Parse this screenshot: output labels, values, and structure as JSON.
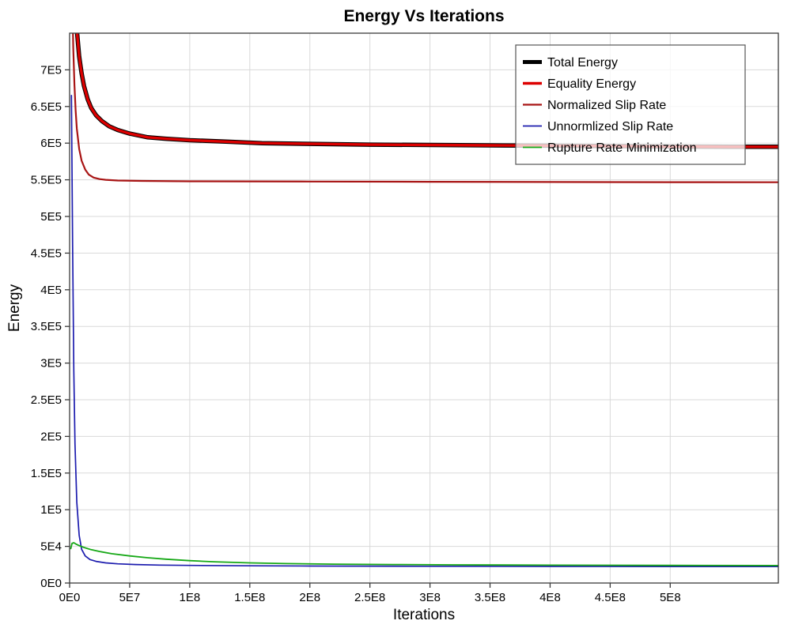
{
  "chart_data": {
    "type": "line",
    "title": "Energy Vs Iterations",
    "xlabel": "Iterations",
    "ylabel": "Energy",
    "xlim": [
      0,
      590000000
    ],
    "ylim": [
      0,
      750000
    ],
    "grid": true,
    "background": "#ffffff",
    "grid_color": "#d9d9d9",
    "axis_color": "#3a3a3a",
    "legend_position": "top-right",
    "x_ticks": [
      {
        "value": 0,
        "label": "0E0"
      },
      {
        "value": 50000000.0,
        "label": "5E7"
      },
      {
        "value": 100000000.0,
        "label": "1E8"
      },
      {
        "value": 150000000.0,
        "label": "1.5E8"
      },
      {
        "value": 200000000.0,
        "label": "2E8"
      },
      {
        "value": 250000000.0,
        "label": "2.5E8"
      },
      {
        "value": 300000000.0,
        "label": "3E8"
      },
      {
        "value": 350000000.0,
        "label": "3.5E8"
      },
      {
        "value": 400000000.0,
        "label": "4E8"
      },
      {
        "value": 450000000.0,
        "label": "4.5E8"
      },
      {
        "value": 500000000.0,
        "label": "5E8"
      }
    ],
    "y_ticks": [
      {
        "value": 0,
        "label": "0E0"
      },
      {
        "value": 50000.0,
        "label": "5E4"
      },
      {
        "value": 100000.0,
        "label": "1E5"
      },
      {
        "value": 150000.0,
        "label": "1.5E5"
      },
      {
        "value": 200000.0,
        "label": "2E5"
      },
      {
        "value": 250000.0,
        "label": "2.5E5"
      },
      {
        "value": 300000.0,
        "label": "3E5"
      },
      {
        "value": 350000.0,
        "label": "3.5E5"
      },
      {
        "value": 400000.0,
        "label": "4E5"
      },
      {
        "value": 450000.0,
        "label": "4.5E5"
      },
      {
        "value": 500000.0,
        "label": "5E5"
      },
      {
        "value": 550000.0,
        "label": "5.5E5"
      },
      {
        "value": 600000.0,
        "label": "6E5"
      },
      {
        "value": 650000.0,
        "label": "6.5E5"
      },
      {
        "value": 700000.0,
        "label": "7E5"
      }
    ],
    "series": [
      {
        "name": "Total Energy",
        "color": "#000000",
        "width": 5.5,
        "points": [
          [
            1000000.0,
            1100000.0
          ],
          [
            2000000.0,
            950000.0
          ],
          [
            3000000.0,
            860000.0
          ],
          [
            4000000.0,
            815000.0
          ],
          [
            5000000.0,
            780000.0
          ],
          [
            6000000.0,
            755000.0
          ],
          [
            8000000.0,
            718000.0
          ],
          [
            10000000.0,
            695000.0
          ],
          [
            12000000.0,
            678000.0
          ],
          [
            15000000.0,
            660000.0
          ],
          [
            18000000.0,
            648000.0
          ],
          [
            22000000.0,
            638000.0
          ],
          [
            27000000.0,
            630000.0
          ],
          [
            33000000.0,
            623000.0
          ],
          [
            40000000.0,
            618000.0
          ],
          [
            50000000.0,
            613000.0
          ],
          [
            65000000.0,
            608000.0
          ],
          [
            80000000.0,
            606000.0
          ],
          [
            100000000.0,
            604000.0
          ],
          [
            130000000.0,
            602000.0
          ],
          [
            160000000.0,
            600000.0
          ],
          [
            200000000.0,
            599000.0
          ],
          [
            250000000.0,
            598000.0
          ],
          [
            300000000.0,
            597500.0
          ],
          [
            350000000.0,
            597000.0
          ],
          [
            400000000.0,
            596500.0
          ],
          [
            450000000.0,
            596000.0
          ],
          [
            500000000.0,
            595500.0
          ],
          [
            550000000.0,
            595000.0
          ],
          [
            590000000.0,
            595000.0
          ]
        ]
      },
      {
        "name": "Equality Energy",
        "color": "#dd0000",
        "width": 3.4,
        "points": [
          [
            1000000.0,
            1100000.0
          ],
          [
            2000000.0,
            950000.0
          ],
          [
            3000000.0,
            860000.0
          ],
          [
            4000000.0,
            815000.0
          ],
          [
            5000000.0,
            780000.0
          ],
          [
            6000000.0,
            755000.0
          ],
          [
            8000000.0,
            718000.0
          ],
          [
            10000000.0,
            695000.0
          ],
          [
            12000000.0,
            678000.0
          ],
          [
            15000000.0,
            660000.0
          ],
          [
            18000000.0,
            648000.0
          ],
          [
            22000000.0,
            638000.0
          ],
          [
            27000000.0,
            630000.0
          ],
          [
            33000000.0,
            623000.0
          ],
          [
            40000000.0,
            618000.0
          ],
          [
            50000000.0,
            613000.0
          ],
          [
            65000000.0,
            608000.0
          ],
          [
            80000000.0,
            606000.0
          ],
          [
            100000000.0,
            604000.0
          ],
          [
            130000000.0,
            602000.0
          ],
          [
            160000000.0,
            600000.0
          ],
          [
            200000000.0,
            599000.0
          ],
          [
            250000000.0,
            598000.0
          ],
          [
            300000000.0,
            597500.0
          ],
          [
            350000000.0,
            597000.0
          ],
          [
            400000000.0,
            596500.0
          ],
          [
            450000000.0,
            596000.0
          ],
          [
            500000000.0,
            595500.0
          ],
          [
            550000000.0,
            595000.0
          ],
          [
            590000000.0,
            595000.0
          ]
        ]
      },
      {
        "name": "Normalized Slip Rate",
        "color": "#a81414",
        "width": 2.2,
        "points": [
          [
            1000000.0,
            950000.0
          ],
          [
            2000000.0,
            820000.0
          ],
          [
            3000000.0,
            730000.0
          ],
          [
            4000000.0,
            680000.0
          ],
          [
            5000000.0,
            645000.0
          ],
          [
            6000000.0,
            620000.0
          ],
          [
            8000000.0,
            592000.0
          ],
          [
            10000000.0,
            576000.0
          ],
          [
            13000000.0,
            564000.0
          ],
          [
            16000000.0,
            557000.0
          ],
          [
            20000000.0,
            553000.0
          ],
          [
            25000000.0,
            551000.0
          ],
          [
            30000000.0,
            550000.0
          ],
          [
            40000000.0,
            549000.0
          ],
          [
            60000000.0,
            548500.0
          ],
          [
            100000000.0,
            548000.0
          ],
          [
            150000000.0,
            547800.0
          ],
          [
            200000000.0,
            547600.0
          ],
          [
            300000000.0,
            547300.0
          ],
          [
            400000000.0,
            547000.0
          ],
          [
            500000000.0,
            546800.0
          ],
          [
            590000000.0,
            546700.0
          ]
        ]
      },
      {
        "name": "Unnormlized Slip Rate",
        "color": "#1c1cae",
        "width": 1.7,
        "points": [
          [
            1500000.0,
            665000.0
          ],
          [
            2500000.0,
            460000.0
          ],
          [
            3500000.0,
            290000.0
          ],
          [
            4500000.0,
            190000.0
          ],
          [
            6000000.0,
            110000.0
          ],
          [
            8000000.0,
            65000.0
          ],
          [
            10000000.0,
            46000.0
          ],
          [
            13000000.0,
            37000.0
          ],
          [
            17000000.0,
            32000.0
          ],
          [
            22000000.0,
            29500.0
          ],
          [
            30000000.0,
            27500.0
          ],
          [
            40000000.0,
            26200.0
          ],
          [
            55000000.0,
            25200.0
          ],
          [
            75000000.0,
            24500.0
          ],
          [
            100000000.0,
            24000.0
          ],
          [
            150000000.0,
            23500.0
          ],
          [
            200000000.0,
            23200.0
          ],
          [
            300000000.0,
            22800.0
          ],
          [
            400000000.0,
            22600.0
          ],
          [
            500000000.0,
            22500.0
          ],
          [
            590000000.0,
            22500.0
          ]
        ]
      },
      {
        "name": "Rupture Rate Minimization",
        "color": "#16a816",
        "width": 1.8,
        "points": [
          [
            1000000.0,
            47000.0
          ],
          [
            2000000.0,
            54000.0
          ],
          [
            3500000.0,
            55000.0
          ],
          [
            5000000.0,
            53500.0
          ],
          [
            8000000.0,
            51000.0
          ],
          [
            12000000.0,
            48500.0
          ],
          [
            18000000.0,
            45500.0
          ],
          [
            25000000.0,
            43000.0
          ],
          [
            35000000.0,
            40000.0
          ],
          [
            50000000.0,
            37000.0
          ],
          [
            65000000.0,
            34500.0
          ],
          [
            80000000.0,
            32500.0
          ],
          [
            100000000.0,
            30500.0
          ],
          [
            120000000.0,
            29000.0
          ],
          [
            150000000.0,
            27500.0
          ],
          [
            180000000.0,
            26500.0
          ],
          [
            220000000.0,
            25800.0
          ],
          [
            270000000.0,
            25200.0
          ],
          [
            320000000.0,
            24800.0
          ],
          [
            400000000.0,
            24400.0
          ],
          [
            500000000.0,
            24000.0
          ],
          [
            590000000.0,
            23800.0
          ]
        ]
      }
    ]
  }
}
